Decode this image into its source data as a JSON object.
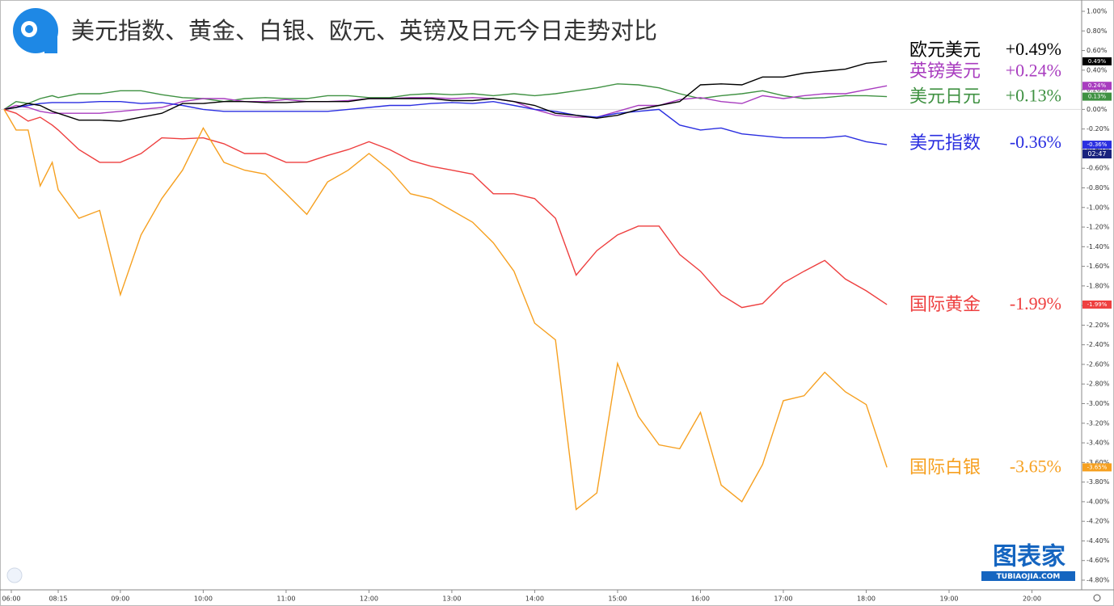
{
  "chart_data": {
    "type": "line",
    "title": "美元指数、黄金、白银、欧元、英镑及日元今日走势对比",
    "x": [
      6,
      6.5,
      7,
      7.5,
      8,
      8.25,
      8.5,
      8.75,
      9,
      9.25,
      9.5,
      9.75,
      10,
      10.25,
      10.5,
      10.75,
      11,
      11.25,
      11.5,
      11.75,
      12,
      12.25,
      12.5,
      12.75,
      13,
      13.25,
      13.5,
      13.75,
      14,
      14.25,
      14.5,
      14.75,
      15,
      15.25,
      15.5,
      15.75,
      16,
      16.25,
      16.5,
      16.75,
      17,
      17.25,
      17.5,
      17.75,
      18,
      18.25
    ],
    "xlim": [
      6,
      20.6
    ],
    "xticks": [
      {
        "value": 6,
        "label": "06:00"
      },
      {
        "value": 8.25,
        "label": "08:15"
      },
      {
        "value": 9,
        "label": "09:00"
      },
      {
        "value": 10,
        "label": "10:00"
      },
      {
        "value": 11,
        "label": "11:00"
      },
      {
        "value": 12,
        "label": "12:00"
      },
      {
        "value": 13,
        "label": "13:00"
      },
      {
        "value": 14,
        "label": "14:00"
      },
      {
        "value": 15,
        "label": "15:00"
      },
      {
        "value": 16,
        "label": "16:00"
      },
      {
        "value": 17,
        "label": "17:00"
      },
      {
        "value": 18,
        "label": "18:00"
      },
      {
        "value": 19,
        "label": "19:00"
      },
      {
        "value": 20,
        "label": "20:00"
      }
    ],
    "ylim": [
      -4.8,
      1.0
    ],
    "yticks": [
      {
        "value": 1.0,
        "label": "1.00%"
      },
      {
        "value": 0.8,
        "label": "0.80%"
      },
      {
        "value": 0.6,
        "label": "0.60%"
      },
      {
        "value": 0.4,
        "label": "0.40%"
      },
      {
        "value": 0.2,
        "label": "0.20%"
      },
      {
        "value": 0,
        "label": "0.00%"
      },
      {
        "value": -0.2,
        "label": "-0.20%"
      },
      {
        "value": -0.4,
        "label": "-0.40%"
      },
      {
        "value": -0.6,
        "label": "-0.60%"
      },
      {
        "value": -0.8,
        "label": "-0.80%"
      },
      {
        "value": -1.0,
        "label": "-1.00%"
      },
      {
        "value": -1.2,
        "label": "-1.20%"
      },
      {
        "value": -1.4,
        "label": "-1.40%"
      },
      {
        "value": -1.6,
        "label": "-1.60%"
      },
      {
        "value": -1.8,
        "label": "-1.80%"
      },
      {
        "value": -2.0,
        "label": "-2.00%"
      },
      {
        "value": -2.2,
        "label": "-2.20%"
      },
      {
        "value": -2.4,
        "label": "-2.40%"
      },
      {
        "value": -2.6,
        "label": "-2.60%"
      },
      {
        "value": -2.8,
        "label": "-2.80%"
      },
      {
        "value": -3.0,
        "label": "-3.00%"
      },
      {
        "value": -3.2,
        "label": "-3.20%"
      },
      {
        "value": -3.4,
        "label": "-3.40%"
      },
      {
        "value": -3.6,
        "label": "-3.60%"
      },
      {
        "value": -3.8,
        "label": "-3.80%"
      },
      {
        "value": -4.0,
        "label": "-4.00%"
      },
      {
        "value": -4.2,
        "label": "-4.20%"
      },
      {
        "value": -4.4,
        "label": "-4.40%"
      },
      {
        "value": -4.6,
        "label": "-4.60%"
      },
      {
        "value": -4.8,
        "label": "-4.80%"
      }
    ],
    "grid": false,
    "countdown": "02:47",
    "watermark": "图表家",
    "watermark_url": "TUBIAOJIA.COM",
    "series": [
      {
        "name": "欧元美元",
        "color": "#000000",
        "last_label": "+0.49%",
        "axis_label": "0.49%",
        "values": [
          0,
          0.02,
          0.06,
          0.04,
          -0.02,
          -0.04,
          -0.11,
          -0.11,
          -0.12,
          -0.08,
          -0.04,
          0.06,
          0.06,
          0.08,
          0.08,
          0.07,
          0.07,
          0.08,
          0.08,
          0.08,
          0.11,
          0.11,
          0.11,
          0.11,
          0.09,
          0.09,
          0.11,
          0.08,
          0.04,
          -0.04,
          -0.06,
          -0.09,
          -0.06,
          0,
          0.04,
          0.08,
          0.25,
          0.26,
          0.25,
          0.33,
          0.33,
          0.37,
          0.39,
          0.41,
          0.47,
          0.49
        ]
      },
      {
        "name": "英镑美元",
        "color": "#a83cbf",
        "last_label": "+0.24%",
        "axis_label": "0.24%",
        "values": [
          0,
          0.04,
          0.02,
          -0.02,
          -0.04,
          -0.04,
          -0.04,
          -0.04,
          -0.02,
          0,
          0.02,
          0.08,
          0.11,
          0.11,
          0.08,
          0.08,
          0.1,
          0.08,
          0.08,
          0.09,
          0.11,
          0.11,
          0.12,
          0.12,
          0.11,
          0.12,
          0.11,
          0.08,
          0,
          -0.06,
          -0.08,
          -0.08,
          -0.02,
          0.04,
          0.04,
          0.1,
          0.12,
          0.08,
          0.06,
          0.14,
          0.11,
          0.14,
          0.16,
          0.16,
          0.2,
          0.24
        ]
      },
      {
        "name": "美元日元",
        "color": "#3f9142",
        "last_label": "+0.13%",
        "axis_label": "0.13%",
        "values": [
          0,
          0.08,
          0.06,
          0.11,
          0.14,
          0.12,
          0.16,
          0.16,
          0.19,
          0.19,
          0.15,
          0.12,
          0.11,
          0.08,
          0.11,
          0.12,
          0.11,
          0.11,
          0.14,
          0.14,
          0.12,
          0.12,
          0.15,
          0.16,
          0.15,
          0.16,
          0.14,
          0.16,
          0.14,
          0.16,
          0.19,
          0.22,
          0.26,
          0.25,
          0.22,
          0.16,
          0.11,
          0.14,
          0.16,
          0.19,
          0.14,
          0.11,
          0.12,
          0.14,
          0.14,
          0.13
        ]
      },
      {
        "name": "美元指数",
        "color": "#2a2ee0",
        "last_label": "-0.36%",
        "axis_label": "-0.36%",
        "values": [
          0,
          0.02,
          0.04,
          0.06,
          0.07,
          0.07,
          0.07,
          0.08,
          0.08,
          0.06,
          0.07,
          0.04,
          0,
          -0.02,
          -0.02,
          -0.02,
          -0.02,
          -0.02,
          -0.02,
          0,
          0.02,
          0.04,
          0.04,
          0.06,
          0.07,
          0.06,
          0.08,
          0.04,
          0,
          -0.02,
          -0.06,
          -0.08,
          -0.04,
          -0.02,
          0,
          -0.16,
          -0.21,
          -0.19,
          -0.25,
          -0.27,
          -0.29,
          -0.29,
          -0.29,
          -0.27,
          -0.33,
          -0.36
        ]
      },
      {
        "name": "国际黄金",
        "color": "#ee3f3f",
        "last_label": "-1.99%",
        "axis_label": "-1.99%",
        "values": [
          0,
          -0.04,
          -0.12,
          -0.08,
          -0.16,
          -0.21,
          -0.41,
          -0.54,
          -0.54,
          -0.45,
          -0.29,
          -0.3,
          -0.29,
          -0.35,
          -0.45,
          -0.45,
          -0.54,
          -0.54,
          -0.47,
          -0.41,
          -0.33,
          -0.41,
          -0.52,
          -0.58,
          -0.62,
          -0.66,
          -0.86,
          -0.86,
          -0.91,
          -1.11,
          -1.69,
          -1.44,
          -1.28,
          -1.19,
          -1.19,
          -1.48,
          -1.65,
          -1.89,
          -2.02,
          -1.98,
          -1.77,
          -1.65,
          -1.54,
          -1.73,
          -1.85,
          -1.99
        ]
      },
      {
        "name": "国际白银",
        "color": "#f6a020",
        "last_label": "-3.65%",
        "axis_label": "-3.65%",
        "values": [
          0,
          -0.21,
          -0.21,
          -0.78,
          -0.54,
          -0.82,
          -1.11,
          -1.03,
          -1.89,
          -1.28,
          -0.91,
          -0.62,
          -0.19,
          -0.54,
          -0.62,
          -0.66,
          -0.86,
          -1.07,
          -0.74,
          -0.62,
          -0.45,
          -0.62,
          -0.86,
          -0.91,
          -1.03,
          -1.15,
          -1.36,
          -1.65,
          -2.18,
          -2.35,
          -4.08,
          -3.91,
          -2.59,
          -3.13,
          -3.42,
          -3.46,
          -3.09,
          -3.83,
          -4.0,
          -3.62,
          -2.97,
          -2.92,
          -2.68,
          -2.88,
          -3.01,
          -3.65
        ]
      }
    ]
  }
}
